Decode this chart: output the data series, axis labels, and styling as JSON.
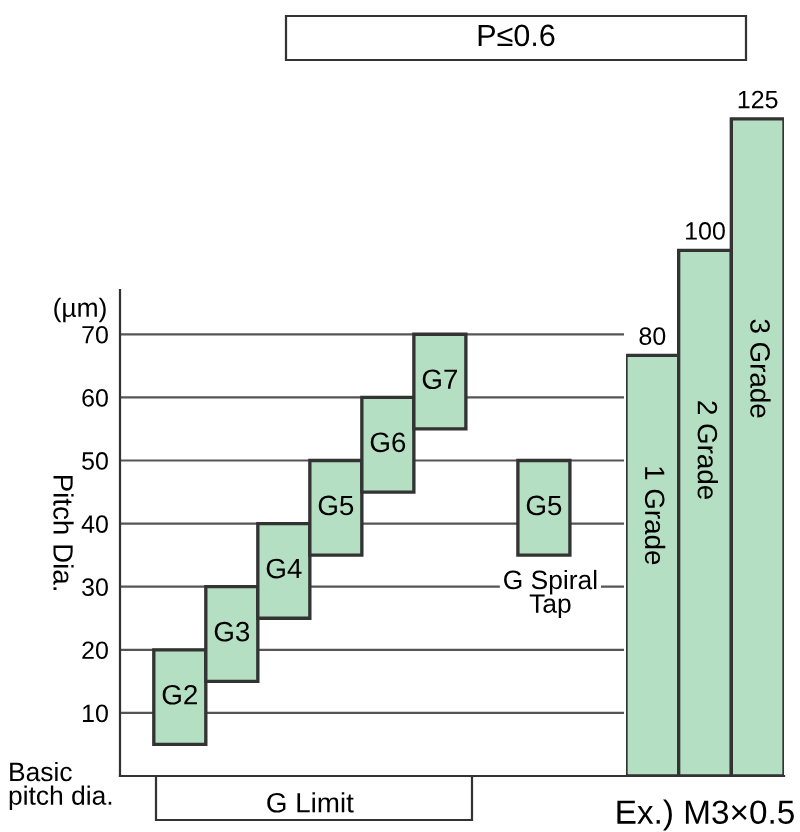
{
  "chart_data": [
    {
      "type": "bar",
      "categories": [
        "G2",
        "G3",
        "G4",
        "G5",
        "G6",
        "G7",
        null,
        "G5"
      ],
      "base": [
        5,
        15,
        25,
        35,
        45,
        55,
        null,
        35
      ],
      "values": [
        15,
        15,
        15,
        15,
        15,
        15,
        null,
        15
      ],
      "color": "#b5dfc2",
      "ylabel": "Pitch Dia.",
      "xlabel": "G Limit",
      "ylim": [
        0,
        77
      ],
      "yticks": [
        10,
        20,
        30,
        40,
        50,
        60,
        70
      ],
      "grid": "y",
      "annotations": [
        "(µm)",
        "Basic\npitch dia.",
        "G Spiral\nTap"
      ]
    },
    {
      "type": "bar",
      "title": "P≤0.6",
      "xlabel": "Ex.) M3×0.5",
      "categories": [
        "1 Grade",
        "2 Grade",
        "3 Grade"
      ],
      "values": [
        80,
        100,
        125
      ],
      "color": "#b5dfc2",
      "data_labels": true
    }
  ]
}
